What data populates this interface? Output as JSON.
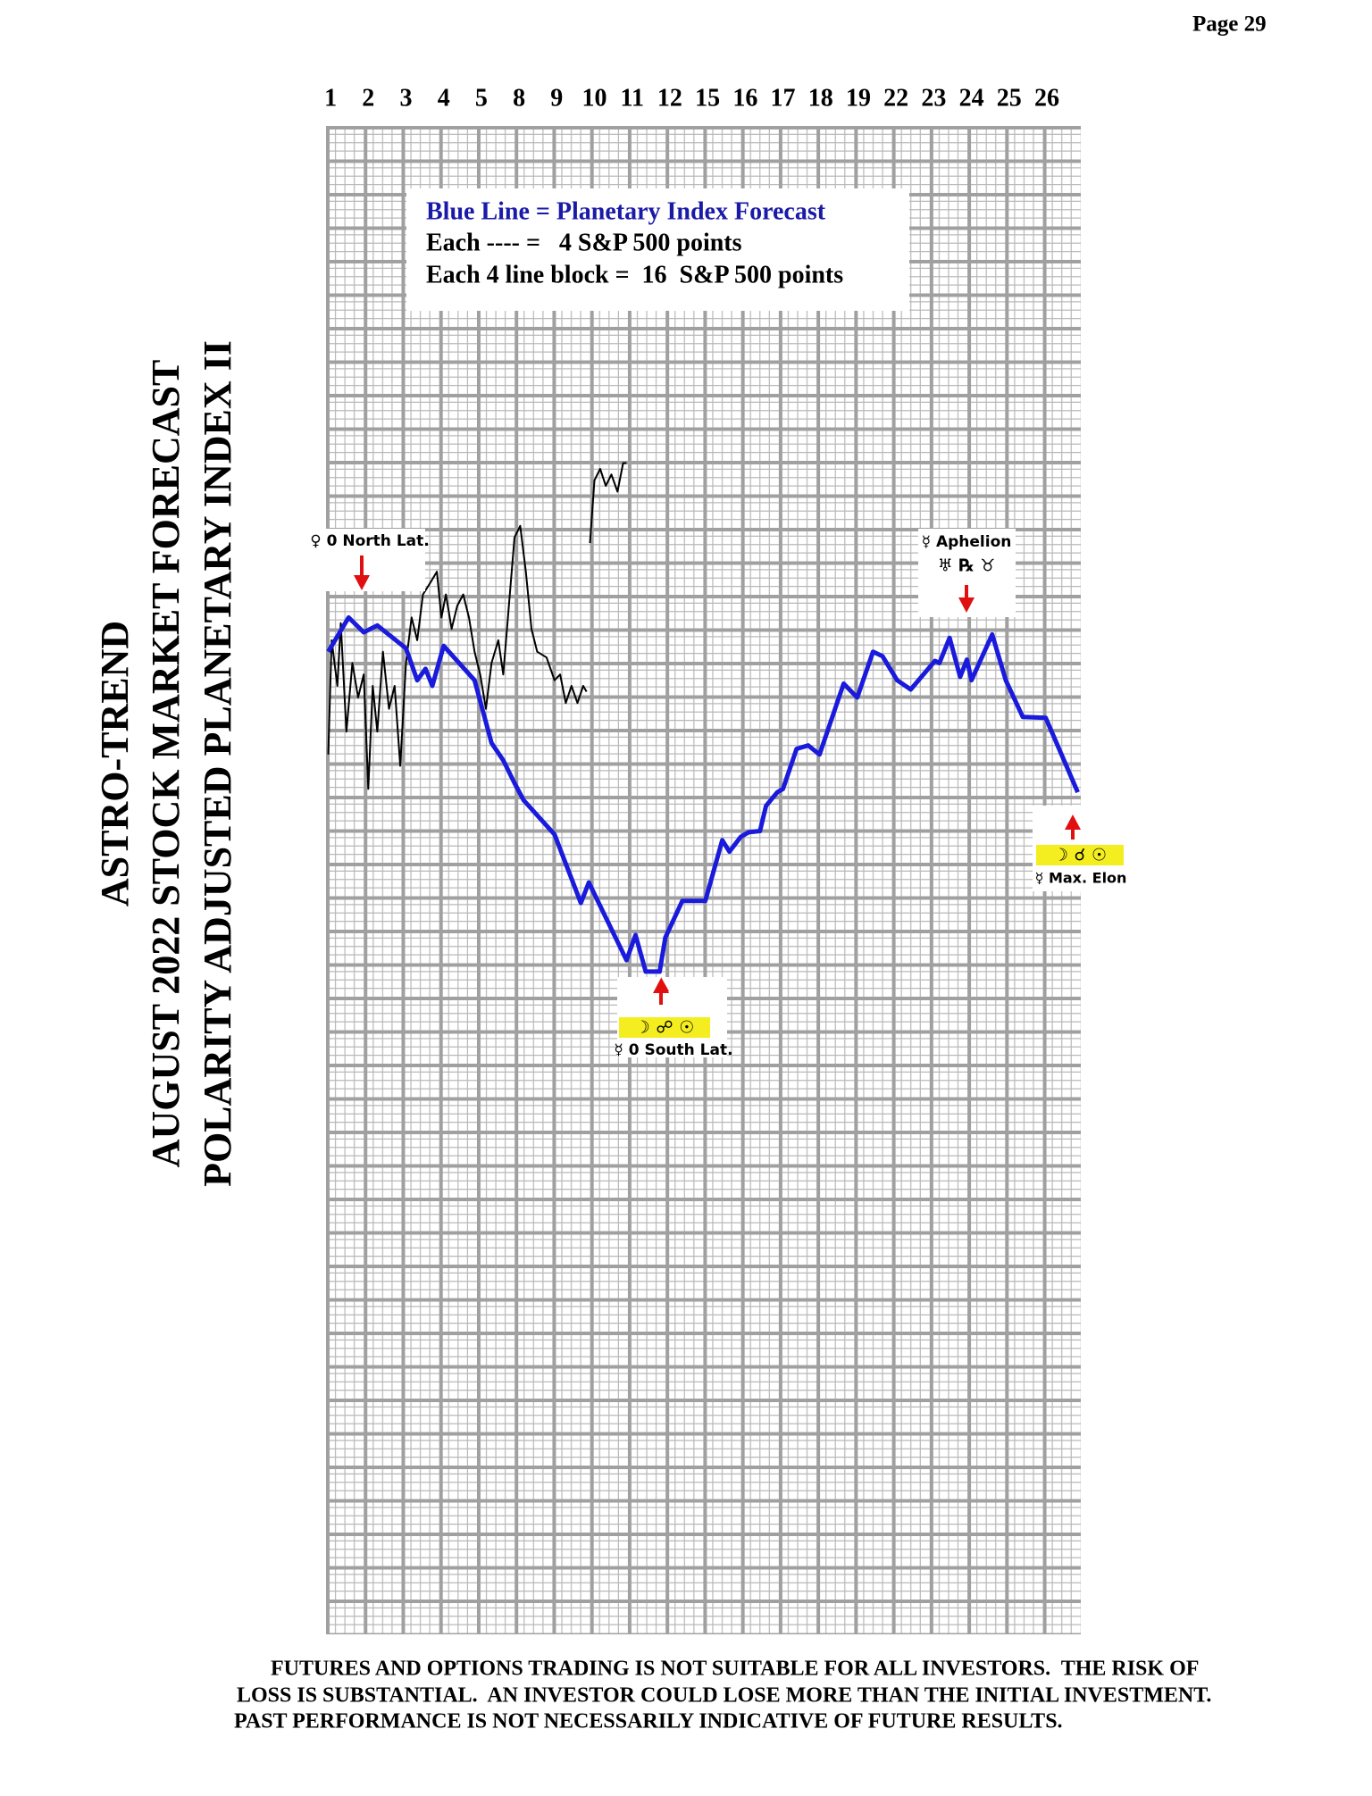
{
  "page": "Page  29",
  "chart_data": {
    "type": "line",
    "title_lines": [
      "ASTRO-TREND",
      "AUGUST 2022  STOCK MARKET FORECAST",
      "POLARITY ADJUSTED PLANETARY INDEX II"
    ],
    "legend_text": [
      "Blue Line = Planetary Index Forecast",
      "Each ---- =   4 S&P 500 points",
      "Each 4 line block =  16  S&P 500 points"
    ],
    "categories": [
      "1",
      "2",
      "3",
      "4",
      "5",
      "8",
      "9",
      "10",
      "11",
      "12",
      "15",
      "16",
      "17",
      "18",
      "19",
      "22",
      "23",
      "24",
      "25",
      "26"
    ],
    "xlim": [
      -0.12,
      19.9
    ],
    "ylim": [
      -491.4,
      262.9
    ],
    "series": [
      {
        "color": "#000000",
        "x": [
          -0.06,
          0.03,
          0.18,
          0.27,
          0.42,
          0.58,
          0.73,
          0.88,
          1.0,
          1.12,
          1.24,
          1.39,
          1.55,
          1.7,
          1.85,
          2.0,
          2.15,
          2.3,
          2.45,
          2.64,
          2.82,
          2.94,
          3.06,
          3.21,
          3.36,
          3.52,
          3.67,
          3.82,
          3.97,
          4.12,
          4.27,
          4.45,
          4.58,
          4.73,
          4.88,
          5.03,
          5.18,
          5.33,
          5.48,
          5.73,
          5.94,
          6.09,
          6.24,
          6.39,
          6.55,
          6.7,
          6.79,
          null,
          6.88,
          7.0,
          7.15,
          7.3,
          7.45,
          7.61,
          7.76,
          7.85
        ],
        "values": [
          -51.4,
          5.7,
          -17.1,
          14.3,
          -40,
          -5.7,
          -22.9,
          -11.4,
          -68.6,
          -17.1,
          -40,
          0,
          -28.6,
          -17.1,
          -57.1,
          -5.7,
          17.1,
          5.7,
          28.6,
          34.3,
          40,
          17.1,
          28.6,
          11.4,
          22.9,
          28.6,
          17.1,
          0,
          -11.4,
          -28.6,
          -5.7,
          5.7,
          -11.4,
          22.9,
          57.1,
          62.9,
          40,
          11.4,
          0,
          -2.9,
          -14.3,
          -11.4,
          -25.7,
          -17.1,
          -25.7,
          -17.1,
          -20,
          null,
          54.3,
          85.7,
          91.4,
          82.9,
          88.6,
          80,
          94.3,
          94.3
        ]
      },
      {
        "color": "#1a1adc",
        "x": [
          -0.06,
          0.48,
          0.88,
          1.24,
          2.0,
          2.3,
          2.52,
          2.7,
          3.0,
          3.82,
          4.27,
          4.58,
          4.88,
          5.12,
          5.94,
          6.64,
          6.85,
          7.85,
          8.09,
          8.36,
          8.73,
          8.88,
          9.33,
          9.94,
          10.39,
          10.58,
          10.88,
          11.09,
          11.39,
          11.55,
          11.85,
          12.0,
          12.36,
          12.67,
          12.97,
          13.61,
          13.97,
          14.39,
          14.64,
          15.03,
          15.39,
          16.03,
          16.15,
          16.42,
          16.7,
          16.88,
          17.0,
          17.55,
          17.91,
          18.36,
          18.97,
          19.82
        ],
        "values": [
          0,
          17.1,
          9.7,
          13.1,
          1.7,
          -14.3,
          -8.6,
          -17.1,
          2.9,
          -14.3,
          -45.7,
          -54.3,
          -65.7,
          -74.3,
          -91.4,
          -125.7,
          -115.4,
          -154.3,
          -141.7,
          -160,
          -160,
          -142.9,
          -124.6,
          -124.6,
          -94.3,
          -100,
          -92.6,
          -90.3,
          -89.7,
          -77.1,
          -70.3,
          -68.6,
          -48.6,
          -46.9,
          -51.4,
          -16,
          -22.9,
          0,
          -2.3,
          -14.3,
          -18.9,
          -4.6,
          -5.7,
          6.9,
          -12.6,
          -4,
          -14.3,
          8.6,
          -14.3,
          -32.6,
          -33.1,
          -70.3
        ]
      }
    ],
    "annotations": [
      {
        "lines": [
          "♀ 0 North Lat."
        ]
      },
      {
        "lines": [
          "☿ Aphelion",
          "♅ ℞ ♉"
        ]
      },
      {
        "lines": [
          "☽ ☍ ☉",
          "☿ 0 South Lat."
        ]
      },
      {
        "lines": [
          "☽ ☌ ☉",
          "☿ Max. Elon"
        ]
      }
    ]
  },
  "disclaimer": [
    "FUTURES AND OPTIONS TRADING IS NOT SUITABLE FOR ALL INVESTORS.  THE RISK OF",
    "LOSS IS SUBSTANTIAL.  AN INVESTOR COULD LOSE MORE THAN THE INITIAL INVESTMENT.",
    "PAST PERFORMANCE IS NOT NECESSARILY INDICATIVE OF FUTURE RESULTS."
  ]
}
